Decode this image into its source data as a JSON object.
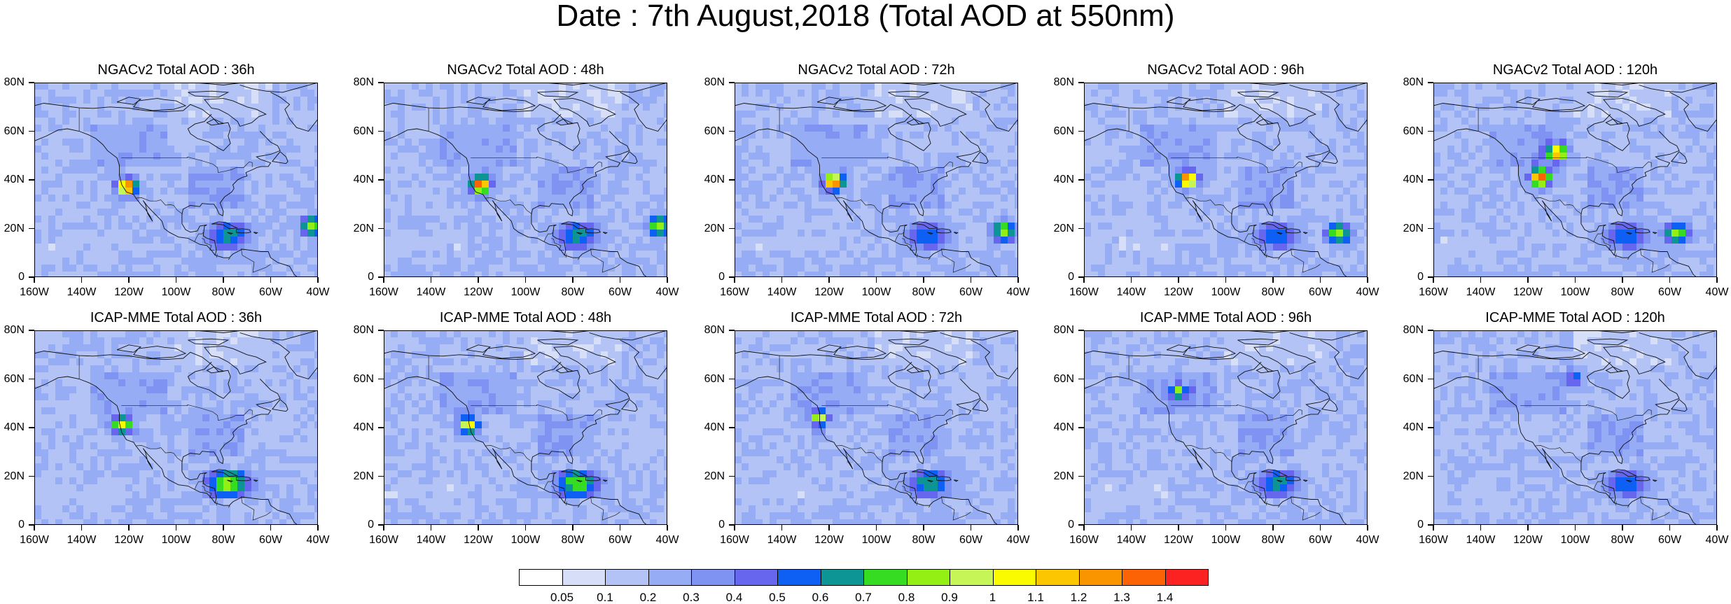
{
  "title": "Date : 7th August,2018 (Total AOD at 550nm)",
  "x_ticks": [
    "160W",
    "140W",
    "120W",
    "100W",
    "80W",
    "60W",
    "40W"
  ],
  "y_ticks": [
    "80N",
    "60N",
    "40N",
    "20N",
    "0"
  ],
  "panels": [
    {
      "title": "NGACv2 Total AOD : 36h",
      "plume": [
        {
          "lon": -121,
          "lat": 37,
          "v": 1.4
        }
      ],
      "atlantic": {
        "lon": -42,
        "lat": 21,
        "v": 0.85
      },
      "carib": 0.5
    },
    {
      "title": "NGACv2 Total AOD : 48h",
      "plume": [
        {
          "lon": -119,
          "lat": 38,
          "v": 1.4
        }
      ],
      "atlantic": {
        "lon": -43,
        "lat": 21,
        "v": 0.85
      },
      "carib": 0.5
    },
    {
      "title": "NGACv2 Total AOD : 72h",
      "plume": [
        {
          "lon": -118,
          "lat": 39,
          "v": 1.4
        }
      ],
      "atlantic": {
        "lon": -46,
        "lat": 19,
        "v": 0.85
      },
      "carib": 0.45
    },
    {
      "title": "NGACv2 Total AOD : 96h",
      "plume": [
        {
          "lon": -116,
          "lat": 40,
          "v": 1.4
        }
      ],
      "atlantic": {
        "lon": -52,
        "lat": 18,
        "v": 0.85
      },
      "carib": 0.45
    },
    {
      "title": "NGACv2 Total AOD : 120h",
      "plume": [
        {
          "lon": -115,
          "lat": 41,
          "v": 1.4
        },
        {
          "lon": -108,
          "lat": 51,
          "v": 1.3
        }
      ],
      "atlantic": {
        "lon": -57,
        "lat": 18,
        "v": 0.85
      },
      "carib": 0.45
    },
    {
      "title": "ICAP-MME Total AOD : 36h",
      "plume": [
        {
          "lon": -123,
          "lat": 41,
          "v": 1.1
        }
      ],
      "atlantic": null,
      "carib": 0.7
    },
    {
      "title": "ICAP-MME Total AOD : 48h",
      "plume": [
        {
          "lon": -124,
          "lat": 41,
          "v": 1.1
        }
      ],
      "atlantic": null,
      "carib": 0.65
    },
    {
      "title": "ICAP-MME Total AOD : 72h",
      "plume": [
        {
          "lon": -124,
          "lat": 44,
          "v": 1.0
        }
      ],
      "atlantic": null,
      "carib": 0.55
    },
    {
      "title": "ICAP-MME Total AOD : 96h",
      "plume": [
        {
          "lon": -120,
          "lat": 55,
          "v": 0.9
        }
      ],
      "atlantic": null,
      "carib": 0.5
    },
    {
      "title": "ICAP-MME Total AOD : 120h",
      "plume": [
        {
          "lon": -100,
          "lat": 60,
          "v": 0.6
        }
      ],
      "atlantic": null,
      "carib": 0.45
    }
  ],
  "colorbar": {
    "levels": [
      "0.05",
      "0.1",
      "0.2",
      "0.3",
      "0.4",
      "0.5",
      "0.6",
      "0.7",
      "0.8",
      "0.9",
      "1",
      "1.1",
      "1.2",
      "1.3",
      "1.4"
    ],
    "colors": [
      "#ffffff",
      "#d6def8",
      "#b4c3f6",
      "#96adf5",
      "#7f93f2",
      "#6766ee",
      "#0e5ff4",
      "#0d9595",
      "#35dc22",
      "#94f014",
      "#c6f558",
      "#fbfb00",
      "#fcc600",
      "#fa9500",
      "#fc6304",
      "#fc2222"
    ]
  },
  "chart_data": {
    "type": "heatmap",
    "title": "Date : 7th August,2018 (Total AOD at 550nm)",
    "lon_range": [
      -160,
      -40
    ],
    "lat_range": [
      0,
      80
    ],
    "variable": "Total AOD at 550nm",
    "panels": [
      "NGACv2 Total AOD : 36h",
      "NGACv2 Total AOD : 48h",
      "NGACv2 Total AOD : 72h",
      "NGACv2 Total AOD : 96h",
      "NGACv2 Total AOD : 120h",
      "ICAP-MME Total AOD : 36h",
      "ICAP-MME Total AOD : 48h",
      "ICAP-MME Total AOD : 72h",
      "ICAP-MME Total AOD : 96h",
      "ICAP-MME Total AOD : 120h"
    ]
  }
}
